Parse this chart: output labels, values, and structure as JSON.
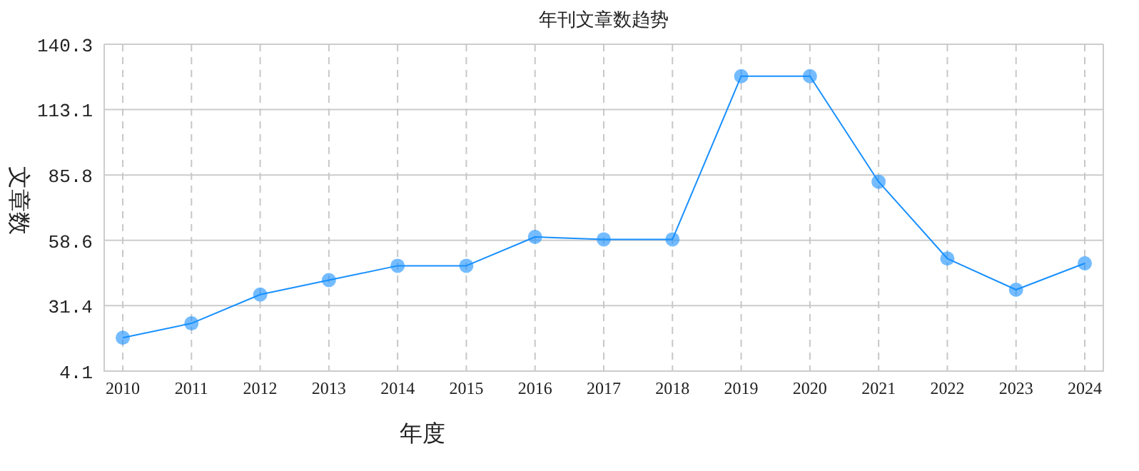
{
  "chart_data": {
    "type": "line",
    "title": "年刊文章数趋势",
    "xlabel": "年度",
    "ylabel": "文章数",
    "categories": [
      "2010",
      "2011",
      "2012",
      "2013",
      "2014",
      "2015",
      "2016",
      "2017",
      "2018",
      "2019",
      "2020",
      "2021",
      "2022",
      "2023",
      "2024"
    ],
    "series": [
      {
        "color": "#1890ff",
        "values": [
          18,
          24,
          36,
          42,
          48,
          48,
          60,
          59,
          59,
          127,
          127,
          83,
          51,
          38,
          49
        ]
      }
    ],
    "ylim": [
      4.1,
      140.3
    ],
    "yticks": [
      4.1,
      31.4,
      58.6,
      85.8,
      113.1,
      140.3
    ],
    "grid": true,
    "marker": "circle",
    "line_style": "solid"
  }
}
